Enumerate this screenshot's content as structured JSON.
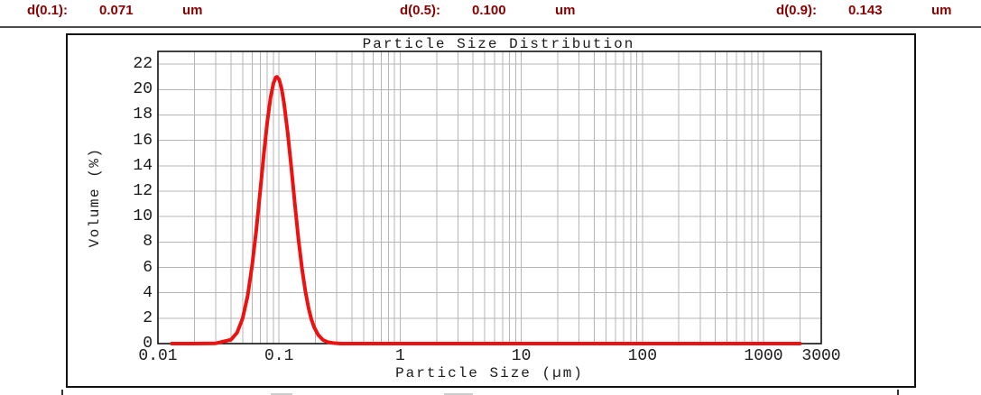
{
  "header": {
    "text_color": "#8b0000",
    "items": [
      {
        "label": "d(0.1):",
        "value": "0.071",
        "unit": "um"
      },
      {
        "label": "d(0.5):",
        "value": "0.100",
        "unit": "um"
      },
      {
        "label": "d(0.9):",
        "value": "0.143",
        "unit": "um"
      }
    ]
  },
  "chart_data": {
    "type": "line",
    "title": "Particle Size Distribution",
    "xlabel": "Particle Size (µm)",
    "ylabel": "Volume (%)",
    "x_scale": "log",
    "xlim": [
      0.01,
      3000
    ],
    "ylim": [
      0,
      23
    ],
    "x_ticks": [
      {
        "value": 0.01,
        "label": "0.01"
      },
      {
        "value": 0.1,
        "label": "0.1"
      },
      {
        "value": 1,
        "label": "1"
      },
      {
        "value": 10,
        "label": "10"
      },
      {
        "value": 100,
        "label": "100"
      },
      {
        "value": 1000,
        "label": "1000"
      },
      {
        "value": 3000,
        "label": "3000"
      }
    ],
    "y_ticks": [
      0,
      2,
      4,
      6,
      8,
      10,
      12,
      14,
      16,
      18,
      20,
      22
    ],
    "grid": true,
    "grid_color": "#b5b5b5",
    "axis_color": "#000000",
    "text_color": "#1a1a1a",
    "legend": "none",
    "percentiles": {
      "d10_um": 0.071,
      "d50_um": 0.1,
      "d90_um": 0.143
    },
    "series": [
      {
        "name": "volume-distribution",
        "color": "#ee1111",
        "stroke_width": 4,
        "peak": {
          "x_um": 0.096,
          "y_pct": 21
        },
        "points": [
          [
            0.013,
            0
          ],
          [
            0.02,
            0
          ],
          [
            0.03,
            0.02
          ],
          [
            0.04,
            0.3
          ],
          [
            0.045,
            0.86
          ],
          [
            0.05,
            1.97
          ],
          [
            0.055,
            3.75
          ],
          [
            0.06,
            6.16
          ],
          [
            0.065,
            9.02
          ],
          [
            0.07,
            12.06
          ],
          [
            0.075,
            14.97
          ],
          [
            0.08,
            17.46
          ],
          [
            0.085,
            19.34
          ],
          [
            0.09,
            20.52
          ],
          [
            0.094,
            20.95
          ],
          [
            0.096,
            21
          ],
          [
            0.1,
            20.81
          ],
          [
            0.105,
            20.08
          ],
          [
            0.11,
            18.95
          ],
          [
            0.118,
            16.58
          ],
          [
            0.126,
            13.93
          ],
          [
            0.135,
            11.01
          ],
          [
            0.145,
            8.16
          ],
          [
            0.155,
            5.87
          ],
          [
            0.165,
            4.12
          ],
          [
            0.175,
            2.83
          ],
          [
            0.185,
            1.92
          ],
          [
            0.195,
            1.29
          ],
          [
            0.21,
            0.7
          ],
          [
            0.23,
            0.3
          ],
          [
            0.25,
            0.13
          ],
          [
            0.28,
            0.04
          ],
          [
            0.32,
            0
          ],
          [
            0.5,
            0
          ],
          [
            1,
            0
          ],
          [
            3,
            0
          ],
          [
            10,
            0
          ],
          [
            30,
            0
          ],
          [
            100,
            0
          ],
          [
            300,
            0
          ],
          [
            1000,
            0
          ],
          [
            2000,
            0
          ]
        ]
      }
    ]
  }
}
